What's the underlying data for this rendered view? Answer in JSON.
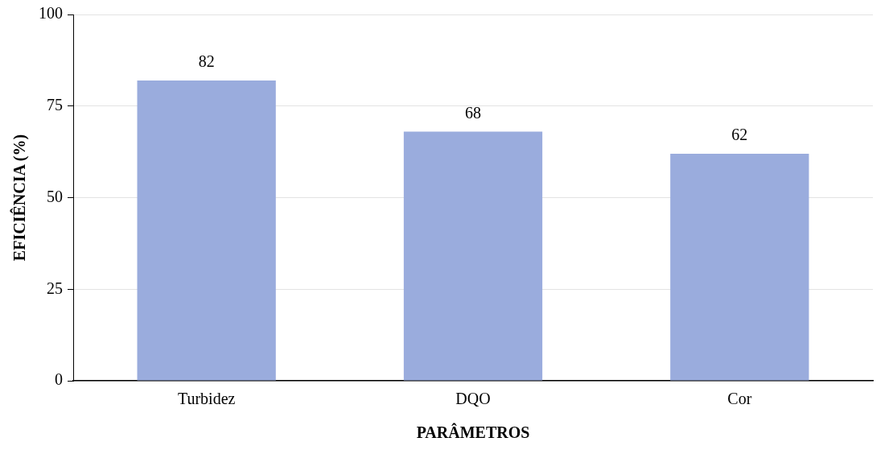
{
  "chart_data": {
    "type": "bar",
    "xlabel": "PARÂMETROS",
    "ylabel": "EFICIÊNCIA (%)",
    "categories": [
      "Turbidez",
      "DQO",
      "Cor"
    ],
    "values": [
      82,
      68,
      62
    ],
    "color": "#9aacdd",
    "ylim": [
      0,
      100
    ],
    "yticks": [
      0,
      25,
      50,
      75,
      100
    ],
    "grid": "y",
    "data_labels": true,
    "legend": false
  }
}
